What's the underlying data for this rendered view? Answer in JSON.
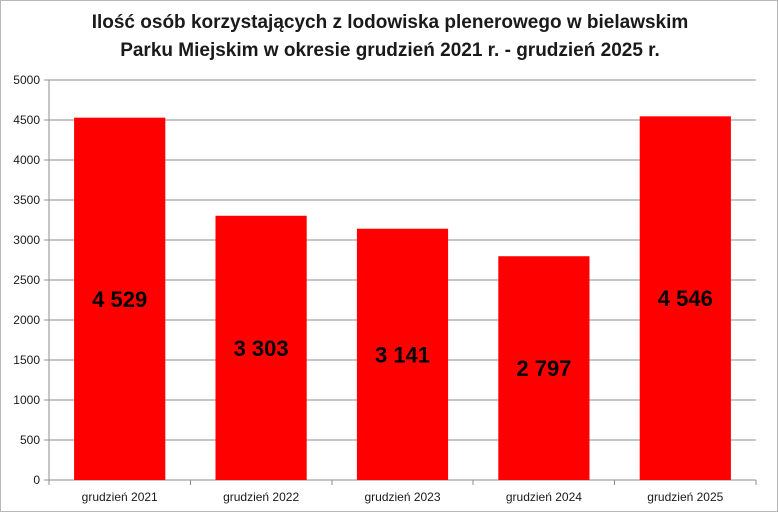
{
  "chart_data": {
    "type": "bar",
    "title_lines": [
      "Ilość osób korzystających z lodowiska plenerowego w bielawskim",
      "Parku Miejskim w okresie grudzień 2021 r. - grudzień 2025 r."
    ],
    "categories": [
      "grudzień 2021",
      "grudzień 2022",
      "grudzień 2023",
      "grudzień 2024",
      "grudzień 2025"
    ],
    "values": [
      4529,
      3303,
      3141,
      2797,
      4546
    ],
    "value_labels": [
      "4 529",
      "3 303",
      "3 141",
      "2 797",
      "4 546"
    ],
    "y_ticks": [
      "0",
      "500",
      "1000",
      "1500",
      "2000",
      "2500",
      "3000",
      "3500",
      "4000",
      "4500",
      "5000"
    ],
    "ylim": [
      0,
      5000
    ],
    "grid": true,
    "legend": "none",
    "bar_color": "#ff0000",
    "grid_color": "#8c8c8c"
  }
}
